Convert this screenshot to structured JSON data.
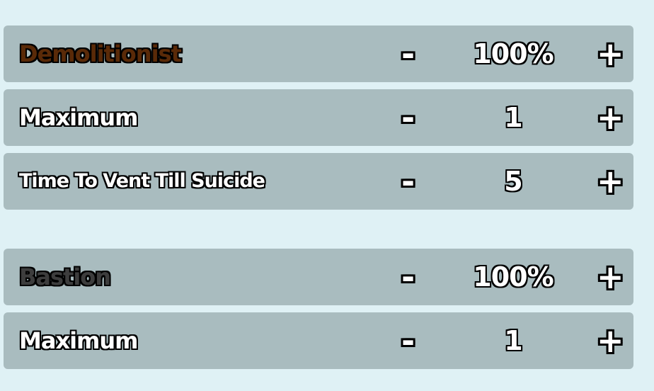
{
  "colors": {
    "background": "#dff1f5",
    "row": "#a9bcbf",
    "demolitionist": "#5a2a08",
    "bastion": "#3d3d3d"
  },
  "icons": {
    "decrease": "minus-icon",
    "increase": "plus-icon"
  },
  "minus": "-",
  "plus": "+",
  "rows": [
    {
      "label": "Demolitionist",
      "value": "100%"
    },
    {
      "label": "Maximum",
      "value": "1"
    },
    {
      "label": "Time To Vent Till Suicide",
      "value": "5"
    },
    {
      "label": "Bastion",
      "value": "100%"
    },
    {
      "label": "Maximum",
      "value": "1"
    }
  ]
}
